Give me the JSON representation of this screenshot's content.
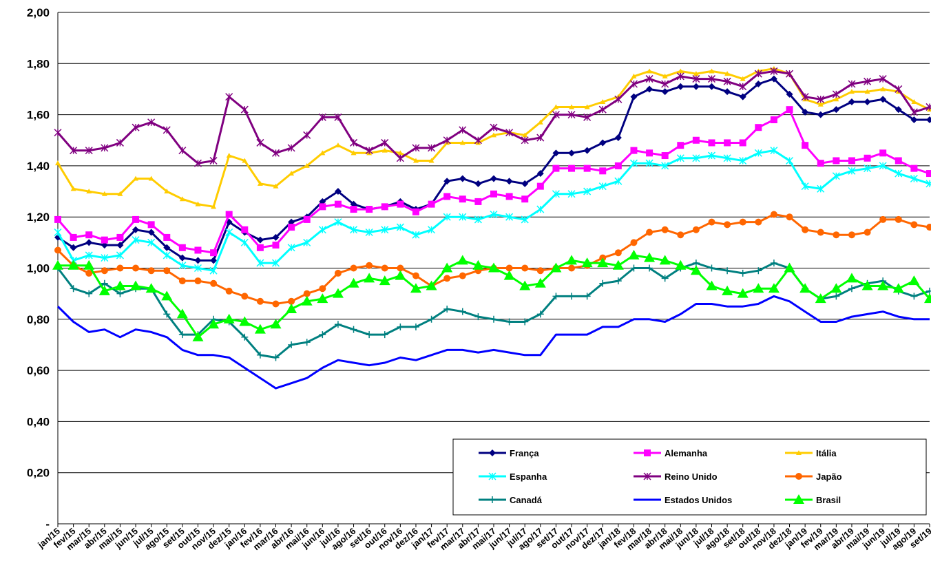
{
  "chart_data": {
    "type": "line",
    "categories": [
      "jan/15",
      "fev/15",
      "mar/15",
      "abr/15",
      "mai/15",
      "jun/15",
      "jul/15",
      "ago/15",
      "set/15",
      "out/15",
      "nov/15",
      "dez/15",
      "jan/16",
      "fev/16",
      "mar/16",
      "abr/16",
      "mai/16",
      "jun/16",
      "jul/16",
      "ago/16",
      "set/16",
      "out/16",
      "nov/16",
      "dez/16",
      "jan/17",
      "fev/17",
      "mar/17",
      "abr/17",
      "mai/17",
      "jun/17",
      "jul/17",
      "ago/17",
      "set/17",
      "out/17",
      "nov/17",
      "dez/17",
      "jan/18",
      "fev/18",
      "mar/18",
      "abr/18",
      "mai/18",
      "jun/18",
      "jul/18",
      "ago/18",
      "set/18",
      "out/18",
      "nov/18",
      "dez/18",
      "jan/19",
      "fev/19",
      "mar/19",
      "abr/19",
      "mai/19",
      "jun/19",
      "jul/19",
      "ago/19",
      "set/19"
    ],
    "ylim": [
      0,
      2
    ],
    "yticks": [
      {
        "value": 0,
        "label": "-"
      },
      {
        "value": 0.2,
        "label": "0,20"
      },
      {
        "value": 0.4,
        "label": "0,40"
      },
      {
        "value": 0.6,
        "label": "0,60"
      },
      {
        "value": 0.8,
        "label": "0,80"
      },
      {
        "value": 1.0,
        "label": "1,00"
      },
      {
        "value": 1.2,
        "label": "1,20"
      },
      {
        "value": 1.4,
        "label": "1,40"
      },
      {
        "value": 1.6,
        "label": "1,60"
      },
      {
        "value": 1.8,
        "label": "1,80"
      },
      {
        "value": 2.0,
        "label": "2,00"
      }
    ],
    "grid": true,
    "legend": "bottom-right",
    "series": [
      {
        "name": "França",
        "color": "#000080",
        "marker": "diamond",
        "values": [
          1.12,
          1.08,
          1.1,
          1.09,
          1.09,
          1.15,
          1.14,
          1.08,
          1.04,
          1.03,
          1.03,
          1.18,
          1.14,
          1.11,
          1.12,
          1.18,
          1.2,
          1.26,
          1.3,
          1.25,
          1.23,
          1.24,
          1.26,
          1.23,
          1.25,
          1.34,
          1.35,
          1.33,
          1.35,
          1.34,
          1.33,
          1.37,
          1.45,
          1.45,
          1.46,
          1.49,
          1.51,
          1.67,
          1.7,
          1.69,
          1.71,
          1.71,
          1.71,
          1.69,
          1.67,
          1.72,
          1.74,
          1.68,
          1.61,
          1.6,
          1.62,
          1.65,
          1.65,
          1.66,
          1.62,
          1.58,
          1.58
        ]
      },
      {
        "name": "Alemanha",
        "color": "#ff00ff",
        "marker": "square",
        "values": [
          1.19,
          1.12,
          1.13,
          1.11,
          1.12,
          1.19,
          1.17,
          1.12,
          1.08,
          1.07,
          1.06,
          1.21,
          1.15,
          1.08,
          1.09,
          1.16,
          1.19,
          1.24,
          1.25,
          1.23,
          1.23,
          1.24,
          1.25,
          1.22,
          1.25,
          1.28,
          1.27,
          1.26,
          1.29,
          1.28,
          1.27,
          1.32,
          1.39,
          1.39,
          1.39,
          1.38,
          1.4,
          1.46,
          1.45,
          1.44,
          1.48,
          1.5,
          1.49,
          1.49,
          1.49,
          1.55,
          1.58,
          1.62,
          1.48,
          1.41,
          1.42,
          1.42,
          1.43,
          1.45,
          1.42,
          1.39,
          1.37
        ]
      },
      {
        "name": "Itália",
        "color": "#ffcc00",
        "marker": "triangle",
        "values": [
          1.41,
          1.31,
          1.3,
          1.29,
          1.29,
          1.35,
          1.35,
          1.3,
          1.27,
          1.25,
          1.24,
          1.44,
          1.42,
          1.33,
          1.32,
          1.37,
          1.4,
          1.45,
          1.48,
          1.45,
          1.45,
          1.46,
          1.45,
          1.42,
          1.42,
          1.49,
          1.49,
          1.49,
          1.52,
          1.53,
          1.52,
          1.57,
          1.63,
          1.63,
          1.63,
          1.65,
          1.67,
          1.75,
          1.77,
          1.75,
          1.77,
          1.76,
          1.77,
          1.76,
          1.74,
          1.77,
          1.78,
          1.76,
          1.66,
          1.64,
          1.66,
          1.69,
          1.69,
          1.7,
          1.69,
          1.65,
          1.62
        ]
      },
      {
        "name": "Espanha",
        "color": "#00ffff",
        "marker": "asterisk",
        "values": [
          1.14,
          1.03,
          1.05,
          1.04,
          1.05,
          1.11,
          1.1,
          1.05,
          1.01,
          1.0,
          0.99,
          1.14,
          1.1,
          1.02,
          1.02,
          1.08,
          1.1,
          1.15,
          1.18,
          1.15,
          1.14,
          1.15,
          1.16,
          1.13,
          1.15,
          1.2,
          1.2,
          1.19,
          1.21,
          1.2,
          1.19,
          1.23,
          1.29,
          1.29,
          1.3,
          1.32,
          1.34,
          1.41,
          1.41,
          1.4,
          1.43,
          1.43,
          1.44,
          1.43,
          1.42,
          1.45,
          1.46,
          1.42,
          1.32,
          1.31,
          1.36,
          1.38,
          1.39,
          1.4,
          1.37,
          1.35,
          1.33
        ]
      },
      {
        "name": "Reino Unido",
        "color": "#800080",
        "marker": "asterisk",
        "values": [
          1.53,
          1.46,
          1.46,
          1.47,
          1.49,
          1.55,
          1.57,
          1.54,
          1.46,
          1.41,
          1.42,
          1.67,
          1.62,
          1.49,
          1.45,
          1.47,
          1.52,
          1.59,
          1.59,
          1.49,
          1.46,
          1.49,
          1.43,
          1.47,
          1.47,
          1.5,
          1.54,
          1.5,
          1.55,
          1.53,
          1.5,
          1.51,
          1.6,
          1.6,
          1.59,
          1.62,
          1.66,
          1.72,
          1.74,
          1.72,
          1.75,
          1.74,
          1.74,
          1.73,
          1.71,
          1.76,
          1.77,
          1.76,
          1.67,
          1.66,
          1.68,
          1.72,
          1.73,
          1.74,
          1.7,
          1.61,
          1.63
        ]
      },
      {
        "name": "Japão",
        "color": "#ff6600",
        "marker": "circle",
        "values": [
          1.07,
          1.01,
          0.98,
          0.99,
          1.0,
          1.0,
          0.99,
          0.99,
          0.95,
          0.95,
          0.94,
          0.91,
          0.89,
          0.87,
          0.86,
          0.87,
          0.9,
          0.92,
          0.98,
          1.0,
          1.01,
          1.0,
          1.0,
          0.97,
          0.93,
          0.96,
          0.97,
          0.99,
          1.0,
          1.0,
          1.0,
          0.99,
          1.0,
          1.0,
          1.01,
          1.04,
          1.06,
          1.1,
          1.14,
          1.15,
          1.13,
          1.15,
          1.18,
          1.17,
          1.18,
          1.18,
          1.21,
          1.2,
          1.15,
          1.14,
          1.13,
          1.13,
          1.14,
          1.19,
          1.19,
          1.17,
          1.16
        ]
      },
      {
        "name": "Canadá",
        "color": "#008080",
        "marker": "plus",
        "values": [
          1.0,
          0.92,
          0.9,
          0.94,
          0.9,
          0.92,
          0.92,
          0.82,
          0.74,
          0.74,
          0.8,
          0.79,
          0.73,
          0.66,
          0.65,
          0.7,
          0.71,
          0.74,
          0.78,
          0.76,
          0.74,
          0.74,
          0.77,
          0.77,
          0.8,
          0.84,
          0.83,
          0.81,
          0.8,
          0.79,
          0.79,
          0.82,
          0.89,
          0.89,
          0.89,
          0.94,
          0.95,
          1.0,
          1.0,
          0.96,
          1.0,
          1.02,
          1.0,
          0.99,
          0.98,
          0.99,
          1.02,
          1.0,
          0.92,
          0.88,
          0.89,
          0.92,
          0.94,
          0.95,
          0.91,
          0.89,
          0.91
        ]
      },
      {
        "name": "Estados Unidos",
        "color": "#0000ff",
        "marker": "none",
        "values": [
          0.85,
          0.79,
          0.75,
          0.76,
          0.73,
          0.76,
          0.75,
          0.73,
          0.68,
          0.66,
          0.66,
          0.65,
          0.61,
          0.57,
          0.53,
          0.55,
          0.57,
          0.61,
          0.64,
          0.63,
          0.62,
          0.63,
          0.65,
          0.64,
          0.66,
          0.68,
          0.68,
          0.67,
          0.68,
          0.67,
          0.66,
          0.66,
          0.74,
          0.74,
          0.74,
          0.77,
          0.77,
          0.8,
          0.8,
          0.79,
          0.82,
          0.86,
          0.86,
          0.85,
          0.85,
          0.86,
          0.89,
          0.87,
          0.83,
          0.79,
          0.79,
          0.81,
          0.82,
          0.83,
          0.81,
          0.8,
          0.8
        ]
      },
      {
        "name": "Brasil",
        "color": "#00ff00",
        "marker": "triangle-big",
        "values": [
          1.01,
          1.01,
          1.01,
          0.91,
          0.93,
          0.93,
          0.92,
          0.89,
          0.82,
          0.73,
          0.78,
          0.8,
          0.79,
          0.76,
          0.78,
          0.84,
          0.87,
          0.88,
          0.9,
          0.94,
          0.96,
          0.95,
          0.97,
          0.92,
          0.93,
          1.0,
          1.03,
          1.01,
          1.0,
          0.97,
          0.93,
          0.94,
          1.0,
          1.03,
          1.02,
          1.02,
          1.01,
          1.05,
          1.04,
          1.03,
          1.01,
          0.99,
          0.93,
          0.91,
          0.9,
          0.92,
          0.92,
          1.0,
          0.92,
          0.88,
          0.92,
          0.96,
          0.93,
          0.93,
          0.92,
          0.95,
          0.88
        ]
      }
    ]
  }
}
